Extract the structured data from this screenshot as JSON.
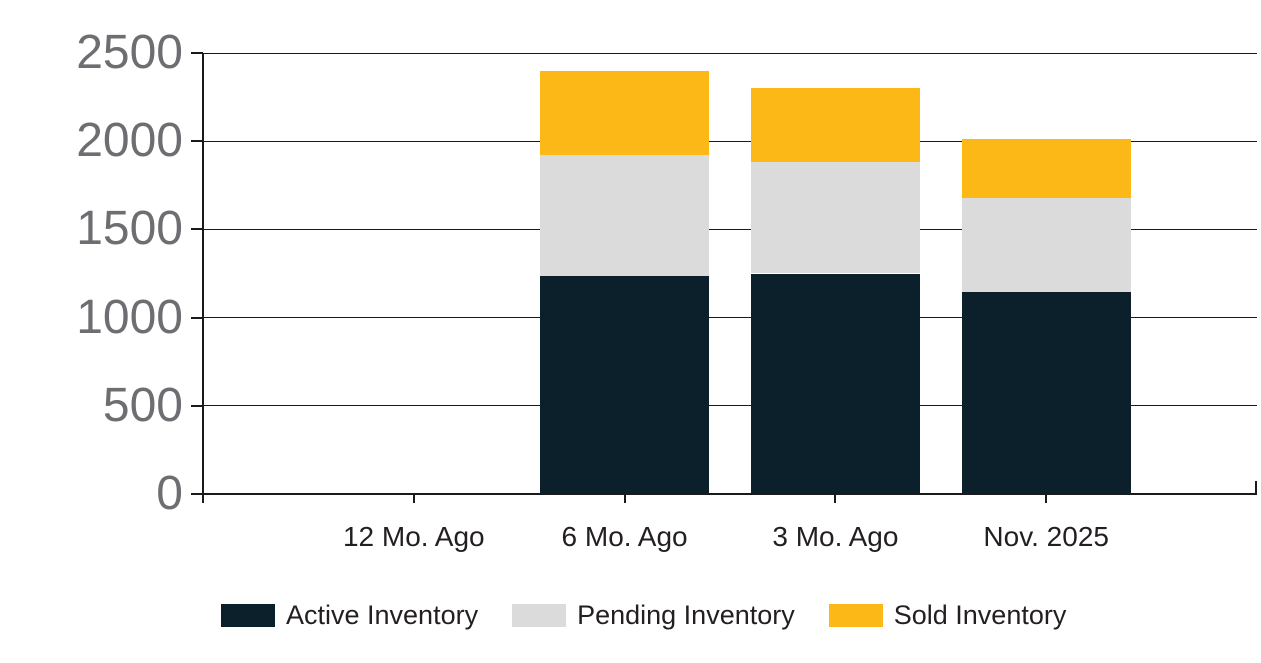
{
  "chart_data": {
    "type": "bar",
    "stacked": true,
    "title": "",
    "xlabel": "",
    "ylabel": "",
    "categories": [
      "12 Mo. Ago",
      "6 Mo. Ago",
      "3 Mo. Ago",
      "Nov. 2025"
    ],
    "series": [
      {
        "name": "Active Inventory",
        "color": "#0c202c",
        "values": [
          0,
          1235,
          1250,
          1145
        ]
      },
      {
        "name": "Pending Inventory",
        "color": "#dbdbdb",
        "values": [
          0,
          685,
          630,
          535
        ]
      },
      {
        "name": "Sold Inventory",
        "color": "#fbb817",
        "values": [
          0,
          480,
          420,
          330
        ]
      }
    ],
    "stack_totals": [
      0,
      2400,
      2300,
      2010
    ],
    "ylim": [
      0,
      2500
    ],
    "yticks": [
      0,
      500,
      1000,
      1500,
      2000,
      2500
    ],
    "grid": true,
    "legend_position": "bottom",
    "colors": {
      "axis": "#1a1a1a",
      "gridline": "#1a1a1a",
      "y_tick_label": "#6d6e71",
      "x_tick_label": "#231f20",
      "legend_text": "#231f20",
      "background": "#ffffff"
    }
  }
}
